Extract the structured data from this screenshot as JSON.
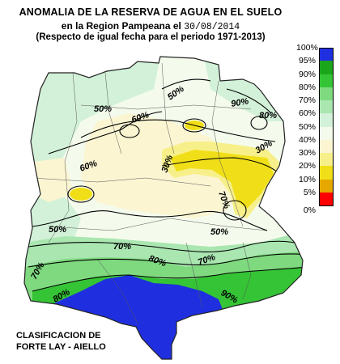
{
  "title": {
    "line1": "ANOMALIA DE LA RESERVA DE AGUA EN EL SUELO",
    "line2_prefix": "en la Region Pampeana el ",
    "line2_date": "30/08/2014",
    "line3": "(Respecto de igual fecha para el periodo 1971-2013)"
  },
  "legend": {
    "items": [
      {
        "label": "100%",
        "color": "#1f2fe0"
      },
      {
        "label": "95%",
        "color": "#1aa51a"
      },
      {
        "label": "90%",
        "color": "#35c435"
      },
      {
        "label": "80%",
        "color": "#7fd97f"
      },
      {
        "label": "70%",
        "color": "#a9e6b0"
      },
      {
        "label": "60%",
        "color": "#d2f1d8"
      },
      {
        "label": "50%",
        "color": "#f4fbec"
      },
      {
        "label": "40%",
        "color": "#fbf5d2"
      },
      {
        "label": "30%",
        "color": "#f7f08a"
      },
      {
        "label": "20%",
        "color": "#f0df18"
      },
      {
        "label": "10%",
        "color": "#e6a800"
      },
      {
        "label": "5%",
        "color": "#ff0000"
      }
    ],
    "bottom_label": "0%"
  },
  "contour_labels": {
    "c1": "50%",
    "c2": "90%",
    "c3": "60%",
    "c4": "80%",
    "c5": "50%",
    "c6": "30%",
    "c7": "60%",
    "c8": "30%",
    "c9": "70%",
    "c10": "50%",
    "c11": "50%",
    "c12": "70%",
    "c13": "80%",
    "c14": "70%",
    "c15": "70%",
    "c16": "90%",
    "c17": "80%"
  },
  "caption": {
    "line1": "CLASIFICACION DE",
    "line2": "FORTE LAY - AIELLO"
  }
}
